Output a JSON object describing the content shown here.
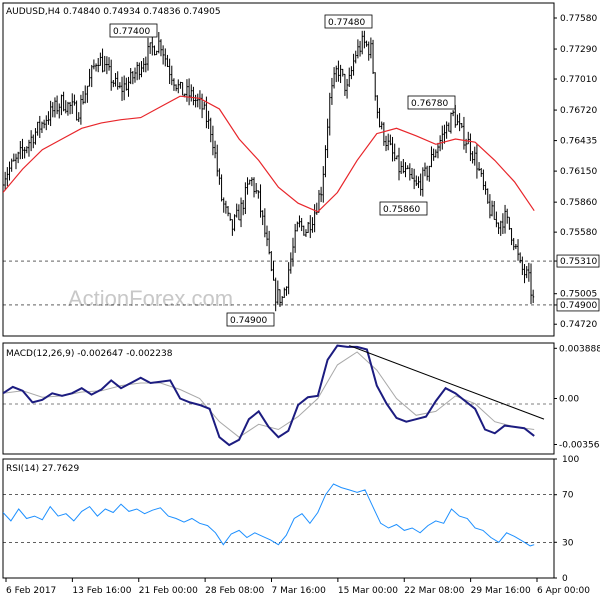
{
  "watermark": "ActionForex.com",
  "chart_data": [
    {
      "type": "candlestick",
      "header": "AUDUSD,H4 0.74840 0.74934 0.74836 0.74905",
      "ylim": [
        0.7461,
        0.7772
      ],
      "y_ticks": [
        "0.77580",
        "0.77290",
        "0.77010",
        "0.76720",
        "0.76435",
        "0.76150",
        "0.75860",
        "0.75580",
        "0.75310",
        "0.75005",
        "0.74900",
        "0.74720"
      ],
      "x_ticks": [
        "6 Feb 2017",
        "13 Feb 16:00",
        "21 Feb 00:00",
        "28 Feb 08:00",
        "7 Mar 16:00",
        "15 Mar 00:00",
        "22 Mar 08:00",
        "29 Mar 16:00",
        "6 Apr 00:00"
      ],
      "annotations": [
        "0.77400",
        "0.77480",
        "0.76780",
        "0.75860",
        "0.74900"
      ],
      "levels": [
        {
          "label": "0.75310",
          "value": 0.7531,
          "style": "dashed"
        },
        {
          "label": "0.74900",
          "value": 0.749,
          "style": "dashed"
        }
      ],
      "price_path": [
        [
          0,
          0.761
        ],
        [
          14,
          0.7625
        ],
        [
          28,
          0.7645
        ],
        [
          44,
          0.7665
        ],
        [
          60,
          0.768
        ],
        [
          76,
          0.767
        ],
        [
          88,
          0.77
        ],
        [
          96,
          0.7722
        ],
        [
          108,
          0.7705
        ],
        [
          118,
          0.769
        ],
        [
          130,
          0.77
        ],
        [
          140,
          0.7715
        ],
        [
          150,
          0.7728
        ],
        [
          160,
          0.7736
        ],
        [
          168,
          0.7712
        ],
        [
          180,
          0.769
        ],
        [
          192,
          0.7685
        ],
        [
          202,
          0.7675
        ],
        [
          212,
          0.7652
        ],
        [
          222,
          0.759
        ],
        [
          232,
          0.756
        ],
        [
          242,
          0.758
        ],
        [
          252,
          0.7608
        ],
        [
          260,
          0.7588
        ],
        [
          268,
          0.7548
        ],
        [
          276,
          0.75
        ],
        [
          284,
          0.7496
        ],
        [
          292,
          0.753
        ],
        [
          300,
          0.7565
        ],
        [
          308,
          0.756
        ],
        [
          316,
          0.7575
        ],
        [
          324,
          0.76
        ],
        [
          332,
          0.768
        ],
        [
          340,
          0.7712
        ],
        [
          350,
          0.769
        ],
        [
          358,
          0.7724
        ],
        [
          366,
          0.7735
        ],
        [
          374,
          0.7728
        ],
        [
          382,
          0.766
        ],
        [
          392,
          0.7638
        ],
        [
          402,
          0.7618
        ],
        [
          412,
          0.761
        ],
        [
          420,
          0.76
        ],
        [
          430,
          0.7612
        ],
        [
          438,
          0.7632
        ],
        [
          448,
          0.765
        ],
        [
          458,
          0.7668
        ],
        [
          466,
          0.765
        ],
        [
          474,
          0.764
        ],
        [
          482,
          0.7622
        ],
        [
          492,
          0.7585
        ],
        [
          502,
          0.7565
        ],
        [
          510,
          0.7572
        ],
        [
          518,
          0.7555
        ],
        [
          526,
          0.7525
        ],
        [
          534,
          0.7515
        ],
        [
          540,
          0.749
        ]
      ],
      "ma_path": [
        [
          0,
          0.7595
        ],
        [
          20,
          0.7617
        ],
        [
          40,
          0.7635
        ],
        [
          60,
          0.7645
        ],
        [
          80,
          0.7655
        ],
        [
          100,
          0.766
        ],
        [
          120,
          0.7663
        ],
        [
          140,
          0.7665
        ],
        [
          160,
          0.7675
        ],
        [
          180,
          0.7685
        ],
        [
          200,
          0.7683
        ],
        [
          220,
          0.7673
        ],
        [
          240,
          0.7645
        ],
        [
          260,
          0.7625
        ],
        [
          280,
          0.76
        ],
        [
          300,
          0.7585
        ],
        [
          320,
          0.7577
        ],
        [
          340,
          0.7595
        ],
        [
          360,
          0.7625
        ],
        [
          380,
          0.765
        ],
        [
          400,
          0.7655
        ],
        [
          420,
          0.7648
        ],
        [
          440,
          0.764
        ],
        [
          460,
          0.7645
        ],
        [
          480,
          0.7642
        ],
        [
          500,
          0.7625
        ],
        [
          520,
          0.7605
        ],
        [
          540,
          0.7578
        ]
      ]
    },
    {
      "type": "line",
      "header": "MACD(12,26,9) -0.002647 -0.002238",
      "ylim": [
        -0.0043,
        0.0043
      ],
      "y_ticks": [
        "0.003888",
        "0.00",
        "-0.003564"
      ],
      "series": [
        {
          "values": [
            [
              0,
              0.0004
            ],
            [
              10,
              0.0009
            ],
            [
              20,
              0.0006
            ],
            [
              30,
              -0.0003
            ],
            [
              40,
              -0.0001
            ],
            [
              50,
              0.0004
            ],
            [
              60,
              0.0002
            ],
            [
              70,
              0.0004
            ],
            [
              80,
              0.0008
            ],
            [
              90,
              0.0003
            ],
            [
              100,
              0.0007
            ],
            [
              110,
              0.0014
            ],
            [
              120,
              0.0008
            ],
            [
              130,
              0.0012
            ],
            [
              140,
              0.0016
            ],
            [
              150,
              0.0012
            ],
            [
              160,
              0.0013
            ],
            [
              170,
              0.0014
            ],
            [
              180,
              0.0
            ],
            [
              190,
              -0.0003
            ],
            [
              200,
              -0.0005
            ],
            [
              210,
              -0.0008
            ],
            [
              220,
              -0.003
            ],
            [
              230,
              -0.0036
            ],
            [
              240,
              -0.0032
            ],
            [
              250,
              -0.0016
            ],
            [
              260,
              -0.001
            ],
            [
              270,
              -0.0022
            ],
            [
              280,
              -0.003
            ],
            [
              290,
              -0.0025
            ],
            [
              300,
              -0.0005
            ],
            [
              310,
              0.0001
            ],
            [
              320,
              0.0002
            ],
            [
              330,
              0.003
            ],
            [
              340,
              0.0041
            ],
            [
              350,
              0.004
            ],
            [
              360,
              0.004
            ],
            [
              370,
              0.0038
            ],
            [
              380,
              0.001
            ],
            [
              390,
              -0.0004
            ],
            [
              400,
              -0.0015
            ],
            [
              410,
              -0.0018
            ],
            [
              420,
              -0.0016
            ],
            [
              430,
              -0.0014
            ],
            [
              440,
              -0.0002
            ],
            [
              450,
              0.0008
            ],
            [
              460,
              0.0004
            ],
            [
              470,
              -0.0002
            ],
            [
              480,
              -0.0008
            ],
            [
              490,
              -0.0024
            ],
            [
              500,
              -0.0027
            ],
            [
              510,
              -0.0021
            ],
            [
              520,
              -0.0022
            ],
            [
              530,
              -0.0023
            ],
            [
              540,
              -0.0029
            ]
          ]
        },
        {
          "values": [
            [
              0,
              0.0004
            ],
            [
              20,
              0.0006
            ],
            [
              40,
              0.0001
            ],
            [
              60,
              0.0002
            ],
            [
              80,
              0.0005
            ],
            [
              100,
              0.0006
            ],
            [
              120,
              0.001
            ],
            [
              140,
              0.0012
            ],
            [
              160,
              0.0012
            ],
            [
              180,
              0.0007
            ],
            [
              200,
              0.0
            ],
            [
              220,
              -0.0018
            ],
            [
              240,
              -0.003
            ],
            [
              260,
              -0.002
            ],
            [
              280,
              -0.0024
            ],
            [
              300,
              -0.0014
            ],
            [
              320,
              0.0
            ],
            [
              340,
              0.0026
            ],
            [
              360,
              0.0036
            ],
            [
              380,
              0.0022
            ],
            [
              400,
              0.0
            ],
            [
              420,
              -0.0013
            ],
            [
              440,
              -0.001
            ],
            [
              460,
              0.0002
            ],
            [
              480,
              -0.0004
            ],
            [
              500,
              -0.0018
            ],
            [
              520,
              -0.0022
            ],
            [
              540,
              -0.0024
            ]
          ]
        }
      ],
      "trendline": [
        [
          352,
          0.0041
        ],
        [
          550,
          -0.0016
        ]
      ]
    },
    {
      "type": "line",
      "header": "RSI(14) 27.7629",
      "ylim": [
        0,
        100
      ],
      "y_ticks": [
        "100",
        "70",
        "30",
        "0"
      ],
      "levels": [
        {
          "value": 70,
          "style": "dashed"
        },
        {
          "value": 30,
          "style": "dashed"
        }
      ],
      "series": [
        {
          "values": [
            [
              0,
              55
            ],
            [
              8,
              48
            ],
            [
              16,
              58
            ],
            [
              24,
              50
            ],
            [
              32,
              52
            ],
            [
              40,
              49
            ],
            [
              48,
              60
            ],
            [
              56,
              52
            ],
            [
              64,
              54
            ],
            [
              72,
              48
            ],
            [
              80,
              56
            ],
            [
              88,
              60
            ],
            [
              96,
              52
            ],
            [
              104,
              58
            ],
            [
              112,
              55
            ],
            [
              120,
              62
            ],
            [
              128,
              56
            ],
            [
              136,
              58
            ],
            [
              144,
              54
            ],
            [
              152,
              57
            ],
            [
              160,
              59
            ],
            [
              168,
              52
            ],
            [
              176,
              50
            ],
            [
              184,
              47
            ],
            [
              192,
              50
            ],
            [
              200,
              46
            ],
            [
              208,
              44
            ],
            [
              216,
              38
            ],
            [
              224,
              28
            ],
            [
              232,
              37
            ],
            [
              240,
              40
            ],
            [
              248,
              34
            ],
            [
              256,
              38
            ],
            [
              264,
              35
            ],
            [
              272,
              32
            ],
            [
              280,
              28
            ],
            [
              288,
              36
            ],
            [
              296,
              50
            ],
            [
              304,
              54
            ],
            [
              312,
              46
            ],
            [
              320,
              55
            ],
            [
              328,
              70
            ],
            [
              336,
              79
            ],
            [
              344,
              76
            ],
            [
              352,
              74
            ],
            [
              360,
              72
            ],
            [
              368,
              74
            ],
            [
              376,
              60
            ],
            [
              384,
              46
            ],
            [
              392,
              42
            ],
            [
              400,
              45
            ],
            [
              408,
              40
            ],
            [
              416,
              42
            ],
            [
              424,
              38
            ],
            [
              432,
              44
            ],
            [
              440,
              48
            ],
            [
              448,
              46
            ],
            [
              456,
              58
            ],
            [
              464,
              52
            ],
            [
              472,
              50
            ],
            [
              480,
              42
            ],
            [
              488,
              40
            ],
            [
              496,
              34
            ],
            [
              504,
              30
            ],
            [
              512,
              38
            ],
            [
              520,
              35
            ],
            [
              528,
              31
            ],
            [
              536,
              27
            ],
            [
              540,
              28
            ]
          ]
        }
      ]
    }
  ]
}
